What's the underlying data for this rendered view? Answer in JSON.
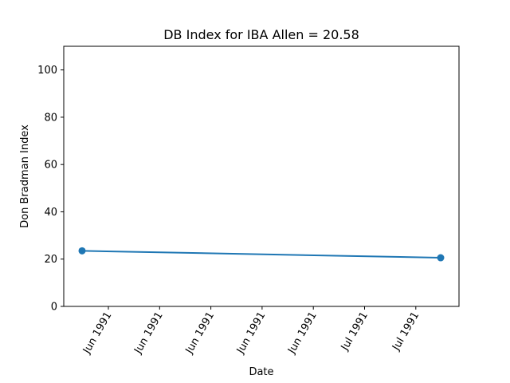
{
  "chart_data": {
    "type": "line",
    "title": "DB Index for IBA Allen = 20.58",
    "xlabel": "Date",
    "ylabel": "Don Bradman Index",
    "ylim": [
      0,
      110
    ],
    "yticks": [
      0,
      20,
      40,
      60,
      80,
      100
    ],
    "xtick_labels": [
      "Jun 1991",
      "Jun 1991",
      "Jun 1991",
      "Jun 1991",
      "Jun 1991",
      "Jul 1991",
      "Jul 1991"
    ],
    "grid": false,
    "series": [
      {
        "color": "#1f77b4",
        "points": [
          {
            "x": "1991-05-29",
            "y": 23.5
          },
          {
            "x": "1991-07-03",
            "y": 20.58
          }
        ]
      }
    ]
  }
}
